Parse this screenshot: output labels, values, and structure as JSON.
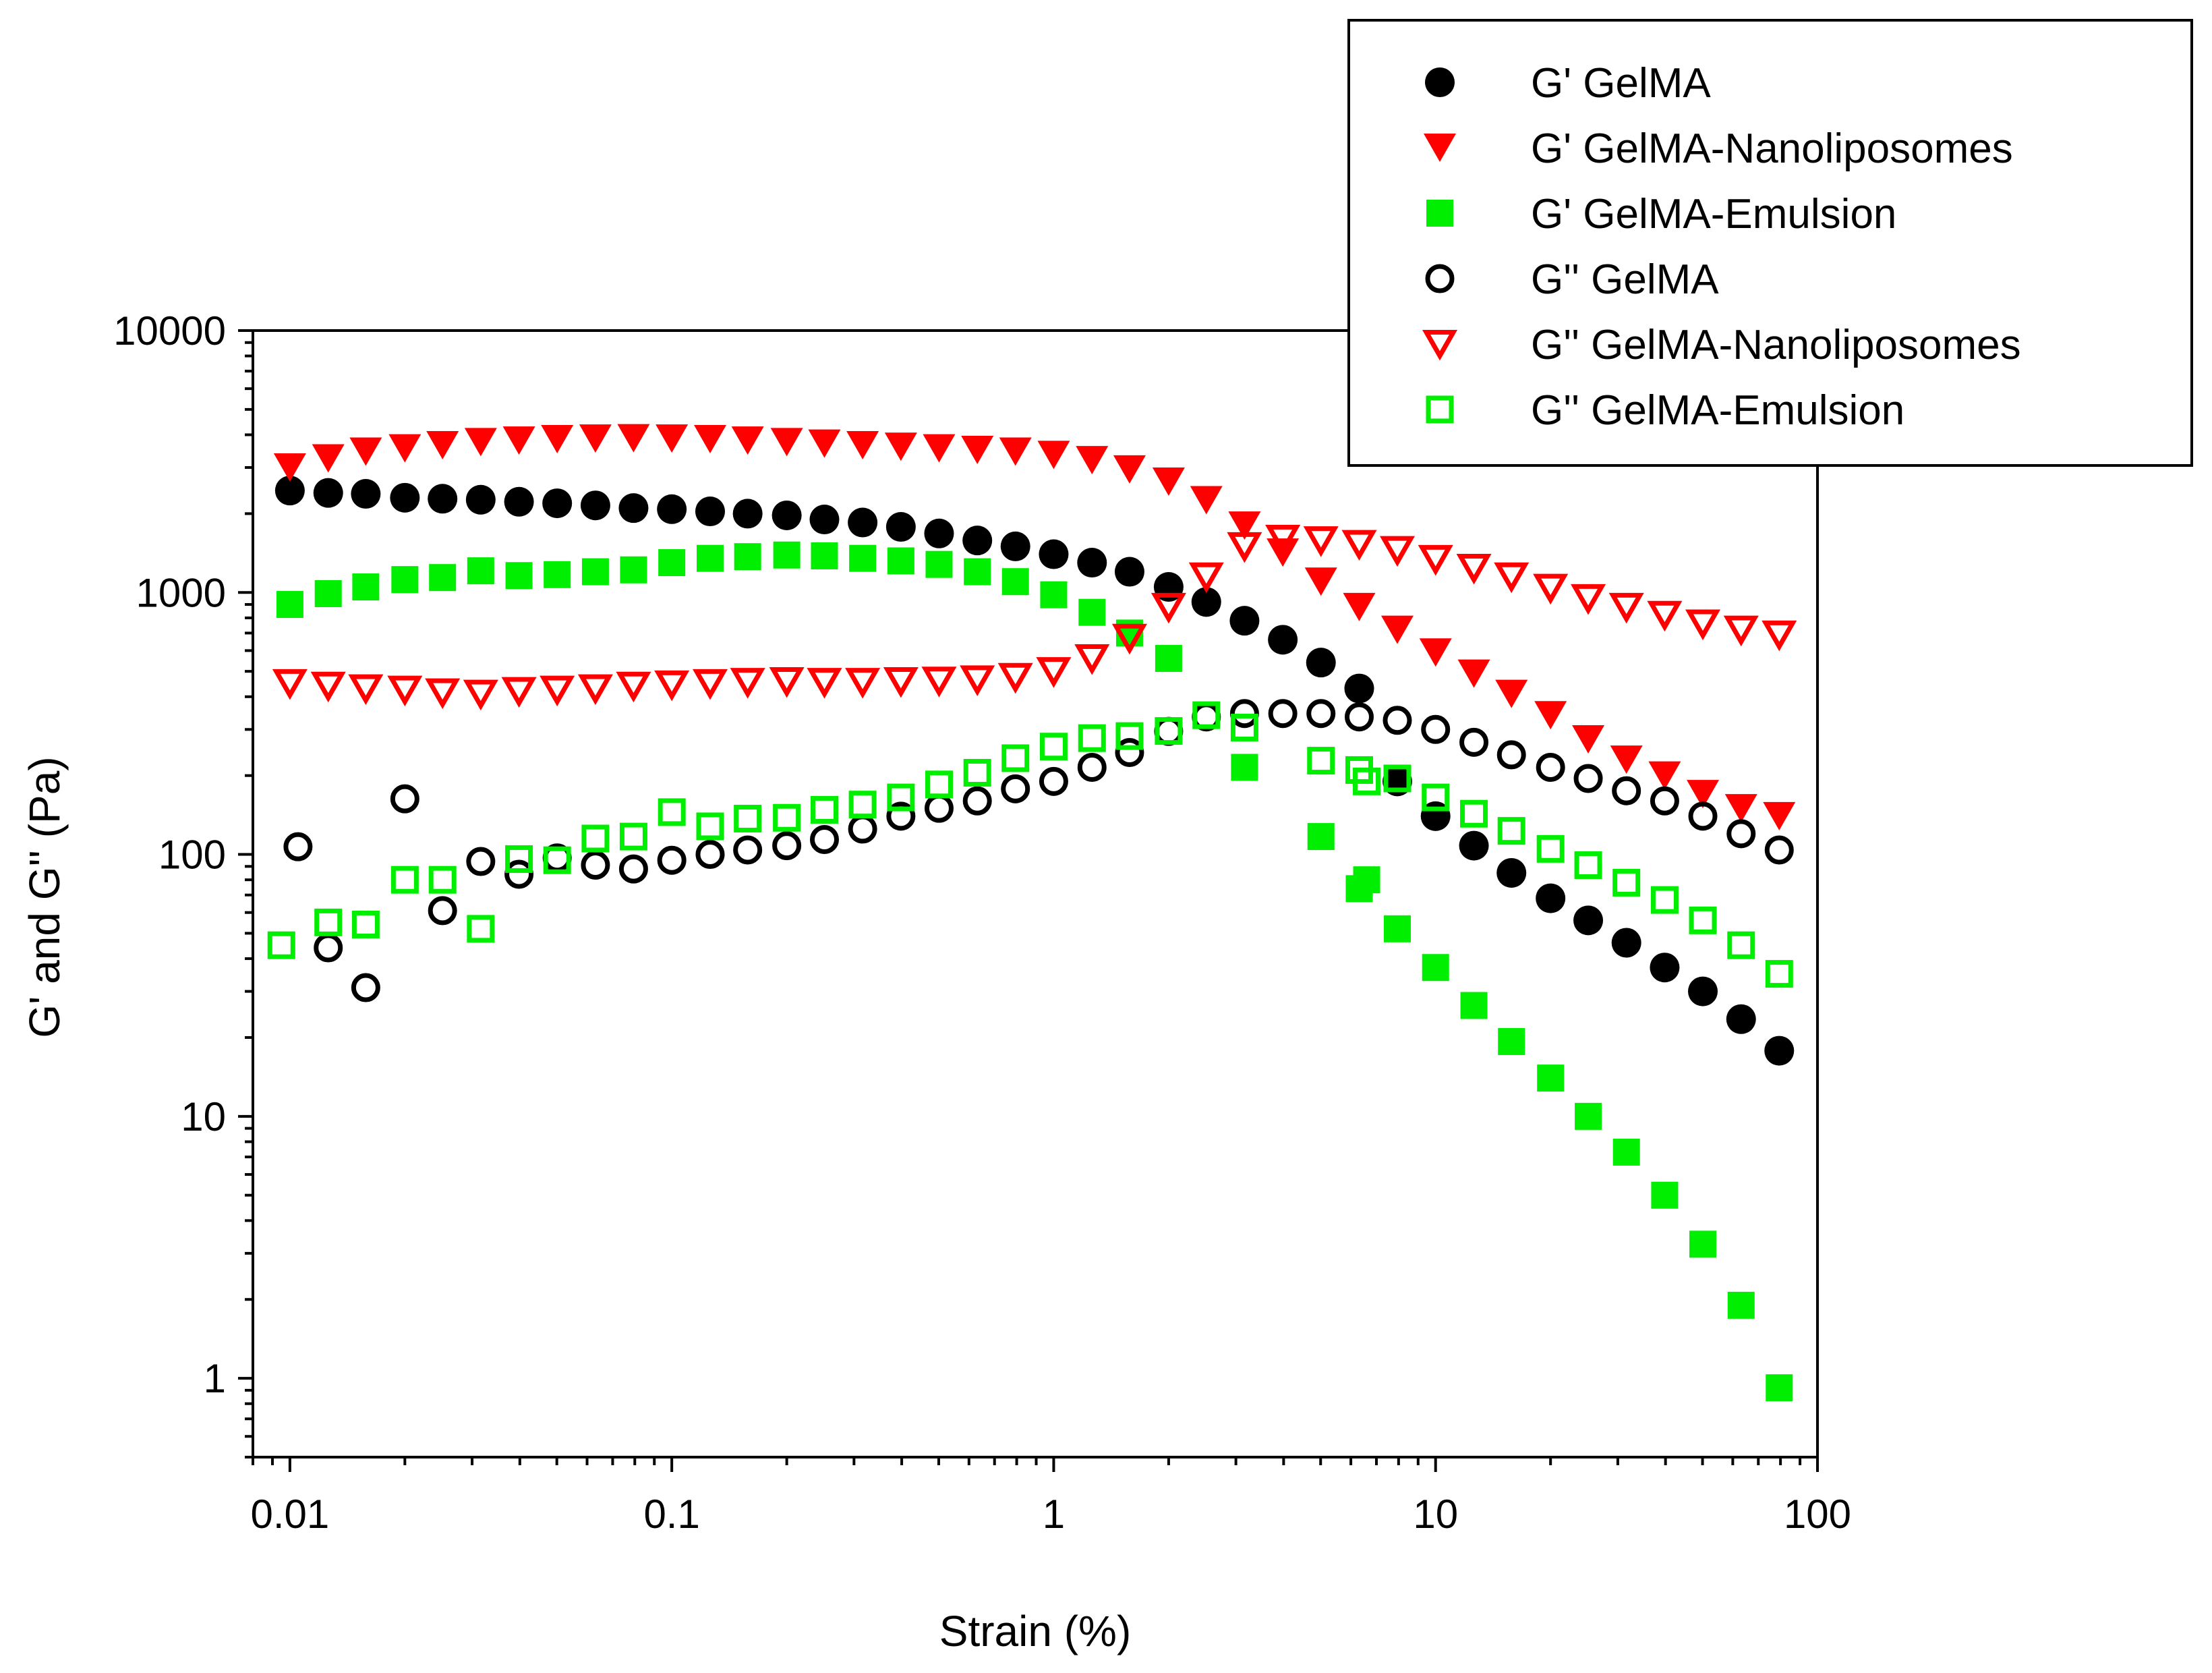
{
  "chart_data": {
    "type": "scatter",
    "title": "",
    "xlabel": "Strain (%)",
    "ylabel": "G' and G'' (Pa)",
    "xscale": "log",
    "yscale": "log",
    "xlim": [
      0.008,
      100
    ],
    "ylim": [
      0.5,
      10000
    ],
    "x_ticks": [
      0.01,
      0.1,
      1,
      10,
      100
    ],
    "x_tick_labels": [
      "0.01",
      "0.1",
      "1",
      "10",
      "100"
    ],
    "y_ticks": [
      1,
      10,
      100,
      1000,
      10000
    ],
    "y_tick_labels": [
      "1",
      "10",
      "100",
      "1000",
      "10000"
    ],
    "legend_position": "top-right",
    "series": [
      {
        "name": "G' GelMA",
        "marker": "circle",
        "filled": true,
        "color": "#000000",
        "points": [
          [
            0.01,
            2450
          ],
          [
            0.0126,
            2400
          ],
          [
            0.0158,
            2380
          ],
          [
            0.02,
            2300
          ],
          [
            0.0251,
            2280
          ],
          [
            0.0316,
            2260
          ],
          [
            0.0398,
            2220
          ],
          [
            0.0501,
            2190
          ],
          [
            0.0631,
            2150
          ],
          [
            0.0794,
            2100
          ],
          [
            0.1,
            2080
          ],
          [
            0.126,
            2040
          ],
          [
            0.158,
            2000
          ],
          [
            0.2,
            1970
          ],
          [
            0.251,
            1900
          ],
          [
            0.316,
            1850
          ],
          [
            0.398,
            1780
          ],
          [
            0.501,
            1680
          ],
          [
            0.631,
            1580
          ],
          [
            0.794,
            1500
          ],
          [
            1.0,
            1400
          ],
          [
            1.26,
            1300
          ],
          [
            1.58,
            1200
          ],
          [
            2.0,
            1050
          ],
          [
            2.51,
            920
          ],
          [
            3.16,
            780
          ],
          [
            3.98,
            660
          ],
          [
            5.01,
            540
          ],
          [
            6.31,
            430
          ],
          [
            7.94,
            190
          ],
          [
            10,
            140
          ],
          [
            12.6,
            108
          ],
          [
            15.8,
            85
          ],
          [
            20,
            68
          ],
          [
            25.1,
            56
          ],
          [
            31.6,
            46
          ],
          [
            39.8,
            37
          ],
          [
            50.1,
            30
          ],
          [
            63.1,
            23.5
          ],
          [
            79.4,
            17.8
          ]
        ]
      },
      {
        "name": "G' GelMA-Nanoliposomes",
        "marker": "triangle-down",
        "filled": true,
        "color": "#ff0000",
        "points": [
          [
            0.01,
            3000
          ],
          [
            0.0126,
            3250
          ],
          [
            0.0158,
            3450
          ],
          [
            0.02,
            3550
          ],
          [
            0.0251,
            3650
          ],
          [
            0.0316,
            3750
          ],
          [
            0.0398,
            3800
          ],
          [
            0.0501,
            3850
          ],
          [
            0.0631,
            3870
          ],
          [
            0.0794,
            3880
          ],
          [
            0.1,
            3870
          ],
          [
            0.126,
            3850
          ],
          [
            0.158,
            3800
          ],
          [
            0.2,
            3750
          ],
          [
            0.251,
            3700
          ],
          [
            0.316,
            3650
          ],
          [
            0.398,
            3600
          ],
          [
            0.501,
            3550
          ],
          [
            0.631,
            3500
          ],
          [
            0.794,
            3450
          ],
          [
            1.0,
            3350
          ],
          [
            1.26,
            3200
          ],
          [
            1.58,
            2950
          ],
          [
            2.0,
            2650
          ],
          [
            2.51,
            2250
          ],
          [
            3.16,
            1800
          ],
          [
            3.98,
            1420
          ],
          [
            5.01,
            1100
          ],
          [
            6.31,
            880
          ],
          [
            7.94,
            720
          ],
          [
            10,
            590
          ],
          [
            12.6,
            490
          ],
          [
            15.8,
            410
          ],
          [
            20,
            340
          ],
          [
            25.1,
            275
          ],
          [
            31.6,
            230
          ],
          [
            39.8,
            200
          ],
          [
            50.1,
            170
          ],
          [
            63.1,
            150
          ],
          [
            79.4,
            140
          ]
        ]
      },
      {
        "name": "G' GelMA-Emulsion",
        "marker": "square",
        "filled": true,
        "color": "#00ee00",
        "points": [
          [
            0.01,
            900
          ],
          [
            0.0126,
            990
          ],
          [
            0.0158,
            1050
          ],
          [
            0.02,
            1120
          ],
          [
            0.0251,
            1140
          ],
          [
            0.0316,
            1210
          ],
          [
            0.0398,
            1160
          ],
          [
            0.0501,
            1170
          ],
          [
            0.0631,
            1200
          ],
          [
            0.0794,
            1220
          ],
          [
            0.1,
            1300
          ],
          [
            0.126,
            1350
          ],
          [
            0.158,
            1370
          ],
          [
            0.2,
            1390
          ],
          [
            0.251,
            1380
          ],
          [
            0.316,
            1350
          ],
          [
            0.398,
            1320
          ],
          [
            0.501,
            1280
          ],
          [
            0.631,
            1200
          ],
          [
            0.794,
            1100
          ],
          [
            1.0,
            980
          ],
          [
            1.26,
            840
          ],
          [
            1.58,
            700
          ],
          [
            2.0,
            560
          ],
          [
            3.16,
            215
          ],
          [
            5.01,
            117
          ],
          [
            6.31,
            74
          ],
          [
            6.6,
            80
          ],
          [
            7.94,
            52
          ],
          [
            10,
            37
          ],
          [
            12.6,
            26.5
          ],
          [
            15.8,
            19.3
          ],
          [
            20,
            14
          ],
          [
            25.1,
            10
          ],
          [
            31.6,
            7.3
          ],
          [
            39.8,
            5
          ],
          [
            50.1,
            3.25
          ],
          [
            63.1,
            1.9
          ],
          [
            79.4,
            0.92
          ]
        ]
      },
      {
        "name": "G'' GelMA",
        "marker": "circle",
        "filled": false,
        "color": "#000000",
        "points": [
          [
            0.0105,
            107
          ],
          [
            0.0126,
            44
          ],
          [
            0.0158,
            31
          ],
          [
            0.02,
            163
          ],
          [
            0.0251,
            61
          ],
          [
            0.0316,
            94
          ],
          [
            0.0398,
            84
          ],
          [
            0.0501,
            97
          ],
          [
            0.0631,
            91
          ],
          [
            0.0794,
            88
          ],
          [
            0.1,
            95
          ],
          [
            0.126,
            100
          ],
          [
            0.158,
            104
          ],
          [
            0.2,
            108
          ],
          [
            0.251,
            114
          ],
          [
            0.316,
            125
          ],
          [
            0.398,
            140
          ],
          [
            0.501,
            150
          ],
          [
            0.631,
            160
          ],
          [
            0.794,
            178
          ],
          [
            1.0,
            190
          ],
          [
            1.26,
            215
          ],
          [
            1.58,
            245
          ],
          [
            2.0,
            295
          ],
          [
            2.51,
            335
          ],
          [
            3.16,
            345
          ],
          [
            3.98,
            345
          ],
          [
            5.01,
            345
          ],
          [
            6.31,
            335
          ],
          [
            7.94,
            325
          ],
          [
            10,
            300
          ],
          [
            12.6,
            268
          ],
          [
            15.8,
            240
          ],
          [
            20,
            215
          ],
          [
            25.1,
            195
          ],
          [
            31.6,
            175
          ],
          [
            39.8,
            160
          ],
          [
            50.1,
            140
          ],
          [
            63.1,
            120
          ],
          [
            79.4,
            104
          ]
        ]
      },
      {
        "name": "G'' GelMA-Nanoliposomes",
        "marker": "triangle-down",
        "filled": false,
        "color": "#ff0000",
        "points": [
          [
            0.01,
            450
          ],
          [
            0.0126,
            440
          ],
          [
            0.0158,
            430
          ],
          [
            0.02,
            425
          ],
          [
            0.0251,
            415
          ],
          [
            0.0316,
            410
          ],
          [
            0.0398,
            420
          ],
          [
            0.0501,
            425
          ],
          [
            0.0631,
            430
          ],
          [
            0.0794,
            440
          ],
          [
            0.1,
            445
          ],
          [
            0.126,
            450
          ],
          [
            0.158,
            455
          ],
          [
            0.2,
            458
          ],
          [
            0.251,
            455
          ],
          [
            0.316,
            455
          ],
          [
            0.398,
            458
          ],
          [
            0.501,
            460
          ],
          [
            0.631,
            465
          ],
          [
            0.794,
            475
          ],
          [
            1.0,
            500
          ],
          [
            1.26,
            560
          ],
          [
            1.58,
            670
          ],
          [
            2.0,
            880
          ],
          [
            2.51,
            1150
          ],
          [
            3.16,
            1500
          ],
          [
            3.98,
            1600
          ],
          [
            5.01,
            1580
          ],
          [
            6.31,
            1530
          ],
          [
            7.94,
            1450
          ],
          [
            10,
            1340
          ],
          [
            12.6,
            1240
          ],
          [
            15.8,
            1150
          ],
          [
            20,
            1040
          ],
          [
            25.1,
            950
          ],
          [
            31.6,
            880
          ],
          [
            39.8,
            820
          ],
          [
            50.1,
            760
          ],
          [
            63.1,
            720
          ],
          [
            79.4,
            690
          ]
        ]
      },
      {
        "name": "G'' GelMA-Emulsion",
        "marker": "square",
        "filled": false,
        "color": "#00ee00",
        "points": [
          [
            0.0095,
            45
          ],
          [
            0.0126,
            55
          ],
          [
            0.0158,
            54
          ],
          [
            0.02,
            80
          ],
          [
            0.0251,
            80
          ],
          [
            0.0316,
            52
          ],
          [
            0.0398,
            96
          ],
          [
            0.0501,
            95
          ],
          [
            0.0631,
            115
          ],
          [
            0.0794,
            117
          ],
          [
            0.1,
            145
          ],
          [
            0.126,
            128
          ],
          [
            0.158,
            137
          ],
          [
            0.2,
            138
          ],
          [
            0.251,
            148
          ],
          [
            0.316,
            155
          ],
          [
            0.398,
            165
          ],
          [
            0.501,
            185
          ],
          [
            0.631,
            205
          ],
          [
            0.794,
            233
          ],
          [
            1.0,
            258
          ],
          [
            1.26,
            278
          ],
          [
            1.58,
            283
          ],
          [
            2.0,
            296
          ],
          [
            2.51,
            340
          ],
          [
            3.16,
            305
          ],
          [
            5.01,
            228
          ],
          [
            6.31,
            210
          ],
          [
            6.6,
            190
          ],
          [
            7.94,
            195
          ],
          [
            10,
            165
          ],
          [
            12.6,
            143
          ],
          [
            15.8,
            123
          ],
          [
            20,
            105
          ],
          [
            25.1,
            91
          ],
          [
            31.6,
            78
          ],
          [
            39.8,
            67
          ],
          [
            50.1,
            56
          ],
          [
            63.1,
            45
          ],
          [
            79.4,
            35
          ]
        ]
      }
    ]
  }
}
